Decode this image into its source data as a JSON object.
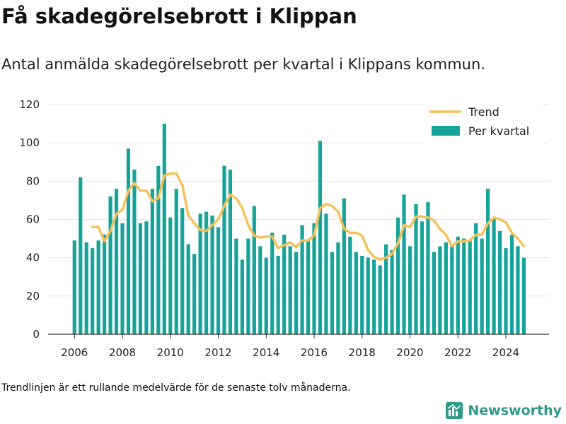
{
  "title": "Få skadegörelsebrott i Klippan",
  "subtitle": "Antal anmälda skadegörelsebrott per kvartal i Klippans kommun.",
  "footnote": "Trendlinjen är ett rullande medelvärde för de senaste tolv månaderna.",
  "brand": {
    "name": "Newsworthy",
    "icon": "newsworthy-logo-icon"
  },
  "colors": {
    "bar": "#16a39a",
    "trend": "#f5c15c",
    "axis": "#333333",
    "grid": "#e6e6e6"
  },
  "chart_data": {
    "type": "bar",
    "x_start": 2006.0,
    "x_step": 0.25,
    "ylim": [
      0,
      120
    ],
    "xlim": [
      2004.9,
      2025.8
    ],
    "yticks": [
      0,
      20,
      40,
      60,
      80,
      100,
      120
    ],
    "xticks": [
      2006,
      2008,
      2010,
      2012,
      2014,
      2016,
      2018,
      2020,
      2022,
      2024
    ],
    "legend_position": "top-right",
    "series": [
      {
        "name": "Per kvartal",
        "type": "bar",
        "values": [
          49,
          82,
          48,
          45,
          49,
          52,
          72,
          76,
          58,
          97,
          86,
          58,
          59,
          76,
          88,
          110,
          61,
          76,
          66,
          47,
          42,
          63,
          64,
          62,
          56,
          88,
          86,
          50,
          39,
          50,
          67,
          46,
          40,
          53,
          41,
          52,
          46,
          43,
          57,
          49,
          58,
          101,
          63,
          43,
          48,
          71,
          51,
          43,
          41,
          40,
          39,
          36,
          47,
          44,
          61,
          73,
          46,
          68,
          59,
          69,
          43,
          46,
          48,
          46,
          51,
          50,
          49,
          58,
          50,
          76,
          61,
          54,
          45,
          52,
          46,
          40
        ]
      },
      {
        "name": "Trend",
        "type": "line",
        "x_start": 2006.75,
        "values": [
          56,
          56,
          48.5,
          54,
          63,
          65,
          75,
          79,
          75,
          75,
          69.5,
          71,
          83,
          84,
          84,
          78,
          62,
          58,
          54.5,
          54,
          57,
          60,
          67,
          73,
          71,
          66,
          57,
          51.5,
          50.5,
          51,
          51,
          45,
          46.5,
          48,
          45.5,
          49,
          49,
          51.5,
          66,
          68,
          67,
          64,
          55,
          53,
          53,
          51.5,
          44,
          40.5,
          39,
          40,
          42,
          47.5,
          57,
          56,
          61.5,
          61.5,
          61,
          59.5,
          55,
          52,
          46,
          48.5,
          48.5,
          49,
          52,
          52,
          58,
          61,
          60,
          58.5,
          53,
          50,
          46
        ]
      }
    ]
  }
}
